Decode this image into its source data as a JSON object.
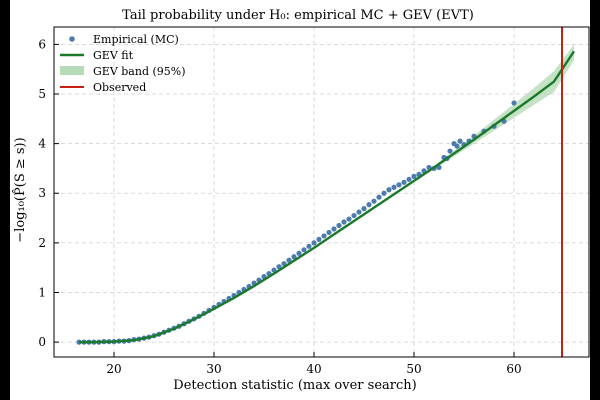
{
  "chart_data": {
    "type": "line",
    "title": "Tail probability under H₀: empirical MC + GEV (EVT)",
    "xlabel": "Detection statistic (max over search)",
    "ylabel": "−log₁₀(P̂(S ≥ s))",
    "xlim": [
      14,
      67.5
    ],
    "ylim": [
      -0.3,
      6.35
    ],
    "xticks": [
      20,
      30,
      40,
      50,
      60
    ],
    "yticks": [
      0,
      1,
      2,
      3,
      4,
      5,
      6
    ],
    "grid": true,
    "legend_position": "top-left",
    "legend": [
      "Empirical (MC)",
      "GEV fit",
      "GEV band (95%)",
      "Observed"
    ],
    "colors": {
      "empirical": "#4c7bb0",
      "gev_fit": "#1a7a2a",
      "gev_band": "#b7dab8",
      "observed": "#c8200e"
    },
    "series": [
      {
        "name": "Empirical (MC)",
        "type": "scatter",
        "x": [
          16.5,
          17,
          17.5,
          18,
          18.5,
          19,
          19.5,
          20,
          20.5,
          21,
          21.5,
          22,
          22.5,
          23,
          23.5,
          24,
          24.5,
          25,
          25.5,
          26,
          26.5,
          27,
          27.5,
          28,
          28.5,
          29,
          29.5,
          30,
          30.5,
          31,
          31.5,
          32,
          32.5,
          33,
          33.5,
          34,
          34.5,
          35,
          35.5,
          36,
          36.5,
          37,
          37.5,
          38,
          38.5,
          39,
          39.5,
          40,
          40.5,
          41,
          41.5,
          42,
          42.5,
          43,
          43.5,
          44,
          44.5,
          45,
          45.5,
          46,
          46.5,
          47,
          47.5,
          48,
          48.5,
          49,
          49.5,
          50,
          50.5,
          51,
          51.5,
          52,
          52.5,
          53,
          53.3,
          53.6,
          54,
          54.3,
          54.6,
          55,
          55.5,
          56,
          57,
          58,
          59,
          60
        ],
        "y": [
          0.0,
          0.0,
          0.0,
          0.0,
          0.0,
          0.01,
          0.01,
          0.01,
          0.02,
          0.02,
          0.03,
          0.05,
          0.06,
          0.08,
          0.1,
          0.13,
          0.16,
          0.2,
          0.24,
          0.28,
          0.32,
          0.37,
          0.42,
          0.47,
          0.52,
          0.58,
          0.64,
          0.7,
          0.76,
          0.82,
          0.88,
          0.94,
          1.0,
          1.06,
          1.12,
          1.19,
          1.25,
          1.32,
          1.38,
          1.45,
          1.52,
          1.58,
          1.65,
          1.72,
          1.79,
          1.86,
          1.93,
          2.0,
          2.07,
          2.14,
          2.21,
          2.28,
          2.35,
          2.42,
          2.48,
          2.55,
          2.62,
          2.69,
          2.77,
          2.84,
          2.92,
          3.0,
          3.07,
          3.12,
          3.17,
          3.22,
          3.28,
          3.34,
          3.38,
          3.45,
          3.52,
          3.5,
          3.52,
          3.72,
          3.7,
          3.85,
          4.0,
          3.95,
          4.05,
          3.98,
          4.05,
          4.15,
          4.25,
          4.35,
          4.45,
          4.82
        ]
      },
      {
        "name": "GEV fit",
        "type": "line",
        "x": [
          16.5,
          18,
          20,
          22,
          24,
          26,
          28,
          30,
          32,
          34,
          36,
          38,
          40,
          42,
          44,
          46,
          48,
          50,
          52,
          54,
          56,
          58,
          60,
          62,
          64,
          66
        ],
        "y": [
          0.0,
          0.0,
          0.01,
          0.04,
          0.12,
          0.27,
          0.46,
          0.67,
          0.89,
          1.13,
          1.38,
          1.64,
          1.9,
          2.17,
          2.44,
          2.71,
          2.98,
          3.25,
          3.52,
          3.8,
          4.08,
          4.37,
          4.66,
          4.95,
          5.25,
          5.86
        ]
      },
      {
        "name": "GEV band (95%)",
        "type": "area",
        "x": [
          50,
          52,
          54,
          56,
          58,
          60,
          62,
          64,
          66
        ],
        "y_low": [
          3.22,
          3.48,
          3.74,
          4.0,
          4.26,
          4.52,
          4.78,
          5.04,
          5.68
        ],
        "y_high": [
          3.28,
          3.56,
          3.86,
          4.16,
          4.48,
          4.8,
          5.12,
          5.46,
          6.0
        ]
      },
      {
        "name": "Observed",
        "type": "vline",
        "x": 64.8
      }
    ]
  }
}
